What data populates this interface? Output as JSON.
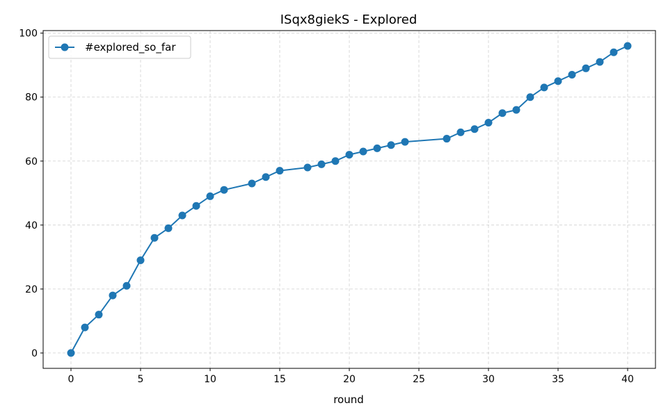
{
  "chart_data": {
    "type": "line",
    "title": "ISqx8giekS - Explored",
    "xlabel": "round",
    "ylabel": "",
    "xlim": [
      -2,
      42
    ],
    "ylim": [
      -4.8,
      100.8
    ],
    "xticks": [
      0,
      5,
      10,
      15,
      20,
      25,
      30,
      35,
      40
    ],
    "yticks": [
      0,
      20,
      40,
      60,
      80,
      100
    ],
    "grid": true,
    "legend_position": "top-left",
    "series": [
      {
        "name": "#explored_so_far",
        "color": "#1f77b4",
        "marker": "circle",
        "x": [
          0,
          1,
          2,
          3,
          4,
          5,
          6,
          7,
          8,
          9,
          10,
          11,
          13,
          14,
          15,
          17,
          18,
          19,
          20,
          21,
          22,
          23,
          24,
          27,
          28,
          29,
          30,
          31,
          32,
          33,
          34,
          35,
          36,
          37,
          38,
          39,
          40
        ],
        "y": [
          0,
          8,
          12,
          18,
          21,
          29,
          36,
          39,
          43,
          46,
          49,
          51,
          53,
          55,
          57,
          58,
          59,
          60,
          62,
          63,
          64,
          65,
          66,
          67,
          69,
          70,
          72,
          75,
          76,
          80,
          83,
          85,
          87,
          89,
          91,
          94,
          96
        ]
      }
    ]
  }
}
